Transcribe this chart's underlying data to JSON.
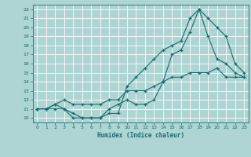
{
  "xlabel": "Humidex (Indice chaleur)",
  "bg_color": "#aed4d4",
  "grid_color": "#ffffff",
  "line_color": "#1a6b6b",
  "xlim": [
    -0.5,
    23.5
  ],
  "ylim": [
    9.5,
    22.5
  ],
  "xticks": [
    0,
    1,
    2,
    3,
    4,
    5,
    6,
    7,
    8,
    9,
    10,
    11,
    12,
    13,
    14,
    15,
    16,
    17,
    18,
    19,
    20,
    21,
    22,
    23
  ],
  "yticks": [
    10,
    11,
    12,
    13,
    14,
    15,
    16,
    17,
    18,
    19,
    20,
    21,
    22
  ],
  "line1_x": [
    0,
    1,
    2,
    3,
    4,
    5,
    6,
    7,
    8,
    9,
    10,
    11,
    12,
    13,
    14,
    15,
    16,
    17,
    18,
    19,
    20,
    21,
    22,
    23
  ],
  "line1_y": [
    11,
    11,
    11,
    11,
    10,
    10,
    10,
    10,
    10.5,
    10.5,
    13.5,
    14.5,
    15.5,
    16.5,
    17.5,
    18,
    18.5,
    21,
    22,
    19,
    16.5,
    16,
    15,
    14.5
  ],
  "line2_x": [
    0,
    1,
    2,
    3,
    4,
    5,
    6,
    7,
    8,
    9,
    10,
    11,
    12,
    13,
    14,
    15,
    16,
    17,
    18,
    19,
    20,
    21,
    22,
    23
  ],
  "line2_y": [
    11,
    11,
    11.5,
    11,
    10.5,
    10,
    10,
    10,
    11,
    11.5,
    12,
    11.5,
    11.5,
    12,
    14,
    17,
    17.5,
    19.5,
    22,
    21,
    20,
    19,
    16,
    15
  ],
  "line3_x": [
    0,
    1,
    2,
    3,
    4,
    5,
    6,
    7,
    8,
    9,
    10,
    11,
    12,
    13,
    14,
    15,
    16,
    17,
    18,
    19,
    20,
    21,
    22,
    23
  ],
  "line3_y": [
    11,
    11,
    11.5,
    12,
    11.5,
    11.5,
    11.5,
    11.5,
    12,
    12,
    13,
    13,
    13,
    13.5,
    14,
    14.5,
    14.5,
    15,
    15,
    15,
    15.5,
    14.5,
    14.5,
    14.5
  ]
}
